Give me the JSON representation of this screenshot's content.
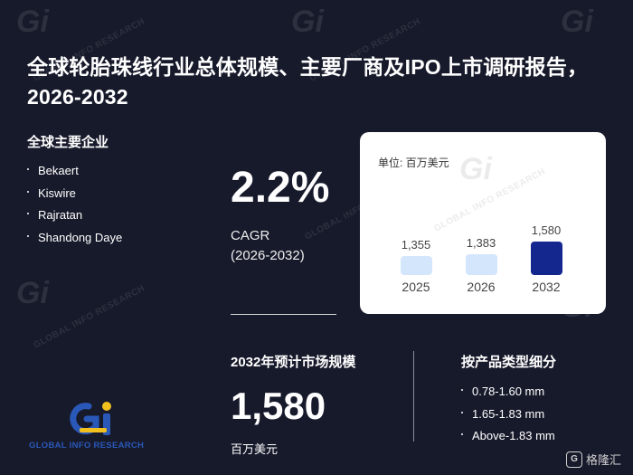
{
  "title": "全球轮胎珠线行业总体规模、主要厂商及IPO上市调研报告，2026-2032",
  "companies": {
    "heading": "全球主要企业",
    "items": [
      "Bekaert",
      "Kiswire",
      "Rajratan",
      "Shandong Daye"
    ]
  },
  "cagr": {
    "value": "2.2%",
    "label": "CAGR",
    "period": "(2026-2032)"
  },
  "chart_data": {
    "type": "bar",
    "unit_label": "单位: 百万美元",
    "categories": [
      "2025",
      "2026",
      "2032"
    ],
    "values": [
      1355,
      1383,
      1580
    ],
    "value_labels": [
      "1,355",
      "1,383",
      "1,580"
    ],
    "colors": [
      "#d3e6fb",
      "#d3e6fb",
      "#14278e"
    ]
  },
  "forecast": {
    "heading": "2032年预计市场规模",
    "value": "1,580",
    "unit": "百万美元"
  },
  "segments": {
    "heading": "按产品类型细分",
    "items": [
      "0.78-1.60 mm",
      "1.65-1.83 mm",
      "Above-1.83 mm"
    ]
  },
  "logo": {
    "mark": "Gi",
    "text": "GLOBAL INFO RESEARCH"
  },
  "watermark": {
    "mark": "Gi",
    "text": "GLOBAL INFO RESEARCH"
  },
  "corner_brand": {
    "text": "格隆汇",
    "icon": "G"
  }
}
